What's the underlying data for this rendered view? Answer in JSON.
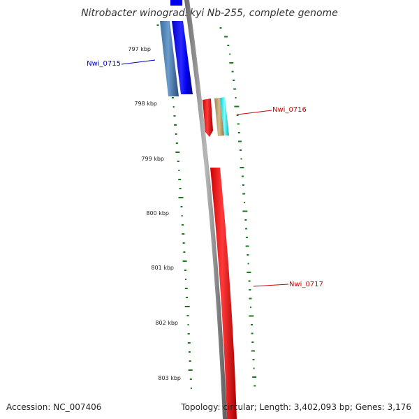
{
  "title": "Nitrobacter winogradskyi Nb-255, complete genome",
  "footer": {
    "accession": "Accession: NC_007406",
    "summary": "Topology: circular; Length: 3,402,093 bp; Genes: 3,176"
  },
  "scale": {
    "ticks": [
      "797 kbp",
      "798 kbp",
      "799 kbp",
      "800 kbp",
      "801 kbp",
      "802 kbp",
      "803 kbp"
    ]
  },
  "genes": [
    {
      "id": "Nwi_0715",
      "label": "Nwi_0715",
      "color": "#0000ee"
    },
    {
      "id": "Nwi_0716",
      "label": "Nwi_0716",
      "color": "#dd0000"
    },
    {
      "id": "Nwi_0717",
      "label": "Nwi_0717",
      "color": "#dd0000"
    }
  ],
  "colors": {
    "backbone": "#8a8a8a",
    "gc_ticks": "#1a7a1a",
    "steelblue_gene": "#4a7fb0",
    "tan_gene": "#b59a6a",
    "cyan_gene": "#00e5ee",
    "blue_gene": "#0000ee",
    "red_gene": "#ee0000"
  }
}
